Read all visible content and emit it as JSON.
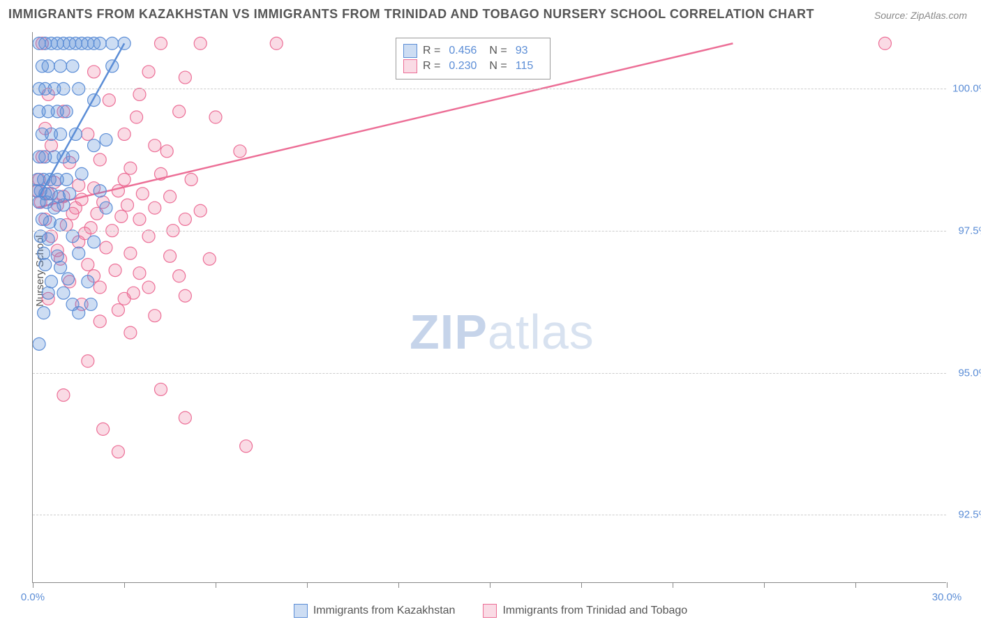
{
  "chart": {
    "type": "scatter",
    "title": "IMMIGRANTS FROM KAZAKHSTAN VS IMMIGRANTS FROM TRINIDAD AND TOBAGO NURSERY SCHOOL CORRELATION CHART",
    "source": "Source: ZipAtlas.com",
    "y_label": "Nursery School",
    "watermark_zip": "ZIP",
    "watermark_atlas": "atlas",
    "xlim": [
      0,
      30
    ],
    "ylim": [
      91.3,
      101.0
    ],
    "x_ticks": [
      0,
      3,
      6,
      9,
      12,
      15,
      18,
      21,
      24,
      27,
      30
    ],
    "x_tick_labels_shown": {
      "0": "0.0%",
      "30": "30.0%"
    },
    "y_ticks": [
      92.5,
      95.0,
      97.5,
      100.0
    ],
    "y_tick_labels": [
      "92.5%",
      "95.0%",
      "97.5%",
      "100.0%"
    ],
    "grid_color": "#cccccc",
    "axis_color": "#888888",
    "tick_label_color": "#5b8dd6",
    "background_color": "#ffffff"
  },
  "series": {
    "kazakhstan": {
      "label": "Immigrants from Kazakhstan",
      "color_fill": "rgba(91,141,214,0.30)",
      "color_stroke": "#5b8dd6",
      "marker_radius": 9,
      "R": "0.456",
      "N": "93",
      "trend": {
        "x1": 0.2,
        "y1": 98.1,
        "x2": 3.0,
        "y2": 100.8
      },
      "points": [
        [
          0.2,
          100.8
        ],
        [
          0.4,
          100.8
        ],
        [
          0.6,
          100.8
        ],
        [
          0.8,
          100.8
        ],
        [
          1.0,
          100.8
        ],
        [
          1.2,
          100.8
        ],
        [
          1.4,
          100.8
        ],
        [
          1.6,
          100.8
        ],
        [
          1.8,
          100.8
        ],
        [
          2.0,
          100.8
        ],
        [
          2.2,
          100.8
        ],
        [
          2.6,
          100.8
        ],
        [
          3.0,
          100.8
        ],
        [
          0.3,
          100.4
        ],
        [
          0.5,
          100.4
        ],
        [
          0.9,
          100.4
        ],
        [
          1.3,
          100.4
        ],
        [
          0.2,
          100.0
        ],
        [
          0.4,
          100.0
        ],
        [
          0.7,
          100.0
        ],
        [
          1.0,
          100.0
        ],
        [
          1.5,
          100.0
        ],
        [
          0.2,
          99.6
        ],
        [
          0.5,
          99.6
        ],
        [
          0.8,
          99.6
        ],
        [
          1.1,
          99.6
        ],
        [
          0.3,
          99.2
        ],
        [
          0.6,
          99.2
        ],
        [
          0.9,
          99.2
        ],
        [
          1.4,
          99.2
        ],
        [
          0.2,
          98.8
        ],
        [
          0.4,
          98.8
        ],
        [
          0.7,
          98.8
        ],
        [
          1.0,
          98.8
        ],
        [
          1.3,
          98.8
        ],
        [
          2.0,
          99.0
        ],
        [
          0.15,
          98.4
        ],
        [
          0.35,
          98.4
        ],
        [
          0.55,
          98.4
        ],
        [
          0.8,
          98.4
        ],
        [
          1.1,
          98.4
        ],
        [
          1.6,
          98.5
        ],
        [
          0.1,
          98.2
        ],
        [
          0.25,
          98.2
        ],
        [
          0.4,
          98.15
        ],
        [
          0.6,
          98.15
        ],
        [
          0.85,
          98.1
        ],
        [
          1.2,
          98.15
        ],
        [
          0.2,
          98.0
        ],
        [
          0.45,
          98.0
        ],
        [
          0.7,
          97.9
        ],
        [
          1.0,
          97.95
        ],
        [
          0.3,
          97.7
        ],
        [
          0.55,
          97.65
        ],
        [
          0.9,
          97.6
        ],
        [
          0.25,
          97.4
        ],
        [
          0.5,
          97.35
        ],
        [
          1.3,
          97.4
        ],
        [
          0.35,
          97.1
        ],
        [
          0.8,
          97.05
        ],
        [
          1.5,
          97.1
        ],
        [
          0.4,
          96.9
        ],
        [
          0.9,
          96.85
        ],
        [
          0.6,
          96.6
        ],
        [
          1.15,
          96.65
        ],
        [
          1.8,
          96.6
        ],
        [
          0.5,
          96.4
        ],
        [
          1.0,
          96.4
        ],
        [
          1.3,
          96.2
        ],
        [
          1.9,
          96.2
        ],
        [
          0.35,
          96.05
        ],
        [
          1.5,
          96.05
        ],
        [
          0.2,
          95.5
        ],
        [
          2.0,
          97.3
        ],
        [
          2.4,
          97.9
        ],
        [
          2.4,
          99.1
        ],
        [
          2.0,
          99.8
        ],
        [
          2.6,
          100.4
        ],
        [
          2.2,
          98.2
        ]
      ]
    },
    "trinidad": {
      "label": "Immigrants from Trinidad and Tobago",
      "color_fill": "rgba(236,110,150,0.25)",
      "color_stroke": "#ec6e96",
      "marker_radius": 9,
      "R": "0.230",
      "N": "115",
      "trend": {
        "x1": 0.1,
        "y1": 97.9,
        "x2": 23.0,
        "y2": 100.8
      },
      "points": [
        [
          0.3,
          100.8
        ],
        [
          4.2,
          100.8
        ],
        [
          5.5,
          100.8
        ],
        [
          8.0,
          100.8
        ],
        [
          28.0,
          100.8
        ],
        [
          3.8,
          100.3
        ],
        [
          5.0,
          100.2
        ],
        [
          0.5,
          99.9
        ],
        [
          2.5,
          99.8
        ],
        [
          3.5,
          99.9
        ],
        [
          4.8,
          99.6
        ],
        [
          6.0,
          99.5
        ],
        [
          0.4,
          99.3
        ],
        [
          1.8,
          99.2
        ],
        [
          3.0,
          99.2
        ],
        [
          4.0,
          99.0
        ],
        [
          6.8,
          98.9
        ],
        [
          0.3,
          98.8
        ],
        [
          1.2,
          98.7
        ],
        [
          2.2,
          98.75
        ],
        [
          3.2,
          98.6
        ],
        [
          4.2,
          98.5
        ],
        [
          5.2,
          98.4
        ],
        [
          0.2,
          98.4
        ],
        [
          0.7,
          98.35
        ],
        [
          1.5,
          98.3
        ],
        [
          2.0,
          98.25
        ],
        [
          2.8,
          98.2
        ],
        [
          3.6,
          98.15
        ],
        [
          4.5,
          98.1
        ],
        [
          0.15,
          98.2
        ],
        [
          0.5,
          98.15
        ],
        [
          1.0,
          98.1
        ],
        [
          1.6,
          98.05
        ],
        [
          2.3,
          98.0
        ],
        [
          3.1,
          97.95
        ],
        [
          4.0,
          97.9
        ],
        [
          5.5,
          97.85
        ],
        [
          0.25,
          98.0
        ],
        [
          0.8,
          97.95
        ],
        [
          1.4,
          97.9
        ],
        [
          2.1,
          97.8
        ],
        [
          2.9,
          97.75
        ],
        [
          3.5,
          97.7
        ],
        [
          0.4,
          97.7
        ],
        [
          1.1,
          97.6
        ],
        [
          1.9,
          97.55
        ],
        [
          2.6,
          97.5
        ],
        [
          3.8,
          97.4
        ],
        [
          0.6,
          97.4
        ],
        [
          1.5,
          97.3
        ],
        [
          2.4,
          97.2
        ],
        [
          3.2,
          97.1
        ],
        [
          4.5,
          97.05
        ],
        [
          0.9,
          97.0
        ],
        [
          1.8,
          96.9
        ],
        [
          2.7,
          96.8
        ],
        [
          3.5,
          96.75
        ],
        [
          4.8,
          96.7
        ],
        [
          1.2,
          96.6
        ],
        [
          2.2,
          96.5
        ],
        [
          3.3,
          96.4
        ],
        [
          5.0,
          96.35
        ],
        [
          1.6,
          96.2
        ],
        [
          2.8,
          96.1
        ],
        [
          4.0,
          96.0
        ],
        [
          1.3,
          97.8
        ],
        [
          2.0,
          96.7
        ],
        [
          3.0,
          96.3
        ],
        [
          3.8,
          96.5
        ],
        [
          0.5,
          96.3
        ],
        [
          2.2,
          95.9
        ],
        [
          1.8,
          95.2
        ],
        [
          3.2,
          95.7
        ],
        [
          1.0,
          94.6
        ],
        [
          4.2,
          94.7
        ],
        [
          2.3,
          94.0
        ],
        [
          5.0,
          94.2
        ],
        [
          2.8,
          93.6
        ],
        [
          7.0,
          93.7
        ],
        [
          0.8,
          97.15
        ],
        [
          1.7,
          97.45
        ],
        [
          3.0,
          98.4
        ],
        [
          4.6,
          97.5
        ],
        [
          5.8,
          97.0
        ],
        [
          5.0,
          97.7
        ],
        [
          4.4,
          98.9
        ],
        [
          3.4,
          99.5
        ],
        [
          2.0,
          100.3
        ],
        [
          1.0,
          99.6
        ],
        [
          0.6,
          99.0
        ]
      ]
    }
  },
  "legend_labels": {
    "R_prefix": "R =",
    "N_prefix": "N ="
  }
}
